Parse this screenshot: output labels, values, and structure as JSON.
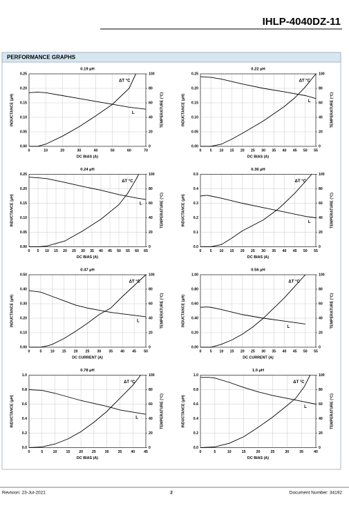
{
  "header": {
    "title": "IHLP-4040DZ-11"
  },
  "section": {
    "title": "PERFORMANCE GRAPHS"
  },
  "footer": {
    "revision": "Revision: 23-Jul-2021",
    "page": "2",
    "document": "Document Number: 34192"
  },
  "chart_data": [
    {
      "type": "line",
      "title": "0.19 µH",
      "x_label": "DC BIAS (A)",
      "y_label": "INDUCTANCE (µH)",
      "y2_label": "TEMPERATURE (°C)",
      "grid": true,
      "xlim": [
        0,
        70
      ],
      "xticks": [
        0,
        10,
        20,
        30,
        40,
        50,
        60,
        70
      ],
      "ylim": [
        0,
        0.25
      ],
      "yticks": [
        {
          "value": 0,
          "label": "0.00"
        },
        {
          "value": 0.05,
          "label": "0.05"
        },
        {
          "value": 0.1,
          "label": "0.10"
        },
        {
          "value": 0.15,
          "label": "0.15"
        },
        {
          "value": 0.2,
          "label": "0.20"
        },
        {
          "value": 0.25,
          "label": "0.25"
        }
      ],
      "y2lim": [
        0,
        100
      ],
      "y2ticks": [
        0,
        20,
        40,
        60,
        80,
        100
      ],
      "series": [
        {
          "name": "L",
          "color": "#000000",
          "x": [
            0,
            5,
            10,
            20,
            30,
            40,
            50,
            60,
            70
          ],
          "values": [
            0.185,
            0.187,
            0.185,
            0.175,
            0.165,
            0.155,
            0.145,
            0.135,
            0.128
          ]
        },
        {
          "name": "ΔT °C",
          "color": "#000000",
          "axis": "y2",
          "x": [
            0,
            5,
            10,
            20,
            30,
            40,
            50,
            60,
            64
          ],
          "values": [
            0,
            0,
            3,
            14,
            27,
            42,
            58,
            80,
            100
          ]
        }
      ]
    },
    {
      "type": "line",
      "title": "0.22 µH",
      "x_label": "DC BIAS (A)",
      "y_label": "INDUCTANCE (µH)",
      "y2_label": "TEMPERATURE (°C)",
      "grid": true,
      "xlim": [
        0,
        55
      ],
      "xticks": [
        0,
        5,
        10,
        15,
        20,
        25,
        30,
        35,
        40,
        45,
        50,
        55
      ],
      "ylim": [
        0,
        0.25
      ],
      "yticks": [
        {
          "value": 0,
          "label": "0.00"
        },
        {
          "value": 0.05,
          "label": "0.05"
        },
        {
          "value": 0.1,
          "label": "0.10"
        },
        {
          "value": 0.15,
          "label": "0.15"
        },
        {
          "value": 0.2,
          "label": "0.20"
        },
        {
          "value": 0.25,
          "label": "0.25"
        }
      ],
      "y2lim": [
        0,
        100
      ],
      "y2ticks": [
        0,
        20,
        40,
        60,
        80,
        100
      ],
      "series": [
        {
          "name": "L",
          "color": "#000000",
          "x": [
            0,
            5,
            10,
            20,
            30,
            40,
            50,
            55
          ],
          "values": [
            0.24,
            0.238,
            0.232,
            0.215,
            0.2,
            0.188,
            0.175,
            0.165
          ]
        },
        {
          "name": "ΔT °C",
          "color": "#000000",
          "axis": "y2",
          "x": [
            0,
            5,
            10,
            15,
            20,
            30,
            40,
            45,
            50,
            55
          ],
          "values": [
            0,
            0,
            3,
            10,
            18,
            35,
            55,
            67,
            82,
            100
          ]
        }
      ]
    },
    {
      "type": "line",
      "title": "0.24 µH",
      "x_label": "DC BIAS (A)",
      "y_label": "INDUCTANCE (µH)",
      "y2_label": "TEMPERATURE (°C)",
      "grid": true,
      "xlim": [
        0,
        65
      ],
      "xticks": [
        0,
        5,
        10,
        15,
        20,
        25,
        30,
        35,
        40,
        45,
        50,
        55,
        60,
        65
      ],
      "ylim": [
        0,
        0.25
      ],
      "yticks": [
        {
          "value": 0,
          "label": "0.00"
        },
        {
          "value": 0.05,
          "label": "0.05"
        },
        {
          "value": 0.1,
          "label": "0.10"
        },
        {
          "value": 0.15,
          "label": "0.15"
        },
        {
          "value": 0.2,
          "label": "0.20"
        },
        {
          "value": 0.25,
          "label": "0.25"
        }
      ],
      "y2lim": [
        0,
        100
      ],
      "y2ticks": [
        0,
        20,
        40,
        60,
        80,
        100
      ],
      "series": [
        {
          "name": "L",
          "color": "#000000",
          "x": [
            0,
            5,
            10,
            20,
            30,
            40,
            50,
            60,
            65
          ],
          "values": [
            0.24,
            0.238,
            0.235,
            0.222,
            0.208,
            0.195,
            0.18,
            0.168,
            0.163
          ]
        },
        {
          "name": "ΔT °C",
          "color": "#000000",
          "axis": "y2",
          "x": [
            0,
            5,
            10,
            20,
            30,
            40,
            50,
            55,
            60,
            61
          ],
          "values": [
            0,
            0,
            1,
            8,
            22,
            38,
            58,
            74,
            95,
            100
          ]
        }
      ]
    },
    {
      "type": "line",
      "title": "0.36 µH",
      "x_label": "DC BIAS (A)",
      "y_label": "INDUCTANCE (µH)",
      "y2_label": "TEMPERATURE (°C)",
      "grid": true,
      "xlim": [
        0,
        55
      ],
      "xticks": [
        0,
        5,
        10,
        15,
        20,
        25,
        30,
        35,
        40,
        45,
        50,
        55
      ],
      "ylim": [
        0,
        0.5
      ],
      "yticks": [
        {
          "value": 0,
          "label": "0.0"
        },
        {
          "value": 0.1,
          "label": "0.1"
        },
        {
          "value": 0.2,
          "label": "0.2"
        },
        {
          "value": 0.3,
          "label": "0.3"
        },
        {
          "value": 0.4,
          "label": "0.4"
        },
        {
          "value": 0.5,
          "label": "0.5"
        }
      ],
      "y2lim": [
        0,
        100
      ],
      "y2ticks": [
        0,
        20,
        40,
        60,
        80,
        100
      ],
      "series": [
        {
          "name": "L",
          "color": "#000000",
          "x": [
            0,
            3,
            5,
            10,
            20,
            30,
            40,
            50,
            55
          ],
          "values": [
            0.35,
            0.355,
            0.35,
            0.335,
            0.3,
            0.27,
            0.24,
            0.21,
            0.2
          ]
        },
        {
          "name": "ΔT °C",
          "color": "#000000",
          "axis": "y2",
          "x": [
            0,
            5,
            10,
            15,
            20,
            30,
            37,
            40,
            45,
            50,
            53
          ],
          "values": [
            0,
            0,
            3,
            12,
            22,
            37,
            52,
            60,
            74,
            90,
            100
          ]
        }
      ]
    },
    {
      "type": "line",
      "title": "0.47 µH",
      "x_label": "DC CURRENT (A)",
      "y_label": "INDUCTANCE (µH)",
      "y2_label": "TEMPERATURE (°C)",
      "grid": true,
      "xlim": [
        0,
        50
      ],
      "xticks": [
        0,
        5,
        10,
        15,
        20,
        25,
        30,
        35,
        40,
        45,
        50
      ],
      "ylim": [
        0,
        0.5
      ],
      "yticks": [
        {
          "value": 0,
          "label": "0.00"
        },
        {
          "value": 0.1,
          "label": "0.10"
        },
        {
          "value": 0.2,
          "label": "0.20"
        },
        {
          "value": 0.3,
          "label": "0.30"
        },
        {
          "value": 0.4,
          "label": "0.40"
        },
        {
          "value": 0.5,
          "label": "0.50"
        }
      ],
      "y2lim": [
        0,
        100
      ],
      "y2ticks": [
        0,
        20,
        40,
        60,
        80,
        100
      ],
      "series": [
        {
          "name": "L",
          "color": "#000000",
          "x": [
            0,
            5,
            10,
            15,
            20,
            25,
            30,
            35,
            40,
            45,
            50
          ],
          "values": [
            0.39,
            0.38,
            0.35,
            0.32,
            0.29,
            0.27,
            0.255,
            0.24,
            0.23,
            0.22,
            0.21
          ]
        },
        {
          "name": "ΔT °C",
          "color": "#000000",
          "axis": "y2",
          "x": [
            0,
            5,
            8,
            10,
            15,
            20,
            25,
            30,
            35,
            40,
            45,
            50
          ],
          "values": [
            0,
            0,
            2,
            4,
            12,
            22,
            33,
            45,
            54,
            70,
            85,
            100
          ]
        }
      ]
    },
    {
      "type": "line",
      "title": "0.56 µH",
      "x_label": "DC CURRENT (A)",
      "y_label": "INDUCTANCE (µH)",
      "y2_label": "TEMPERATURE (°C)",
      "grid": true,
      "xlim": [
        0,
        55
      ],
      "xticks": [
        0,
        5,
        10,
        15,
        20,
        25,
        30,
        35,
        40,
        45,
        50,
        55
      ],
      "ylim": [
        0,
        1
      ],
      "yticks": [
        {
          "value": 0,
          "label": "0.00"
        },
        {
          "value": 0.2,
          "label": "0.20"
        },
        {
          "value": 0.4,
          "label": "0.40"
        },
        {
          "value": 0.6,
          "label": "0.60"
        },
        {
          "value": 0.8,
          "label": "0.80"
        },
        {
          "value": 1,
          "label": "1.00"
        }
      ],
      "y2lim": [
        0,
        100
      ],
      "y2ticks": [
        0,
        20,
        40,
        60,
        80,
        100
      ],
      "series": [
        {
          "name": "L",
          "color": "#000000",
          "x": [
            0,
            3,
            5,
            10,
            20,
            30,
            40,
            50
          ],
          "values": [
            0.55,
            0.555,
            0.55,
            0.52,
            0.45,
            0.4,
            0.36,
            0.32
          ]
        },
        {
          "name": "ΔT °C",
          "color": "#000000",
          "axis": "y2",
          "x": [
            0,
            5,
            10,
            15,
            20,
            25,
            30,
            35,
            40,
            45,
            50
          ],
          "values": [
            0,
            0,
            4,
            10,
            18,
            28,
            40,
            54,
            68,
            84,
            100
          ]
        }
      ]
    },
    {
      "type": "line",
      "title": "0.78 µH",
      "x_label": "DC BIAS (A)",
      "y_label": "INDUCTANCE (µH)",
      "y2_label": "TEMPERATURE (°C)",
      "grid": true,
      "xlim": [
        0,
        45
      ],
      "xticks": [
        0,
        5,
        10,
        15,
        20,
        25,
        30,
        35,
        40,
        45
      ],
      "ylim": [
        0,
        1
      ],
      "yticks": [
        {
          "value": 0,
          "label": "0.0"
        },
        {
          "value": 0.2,
          "label": "0.2"
        },
        {
          "value": 0.4,
          "label": "0.4"
        },
        {
          "value": 0.6,
          "label": "0.6"
        },
        {
          "value": 0.8,
          "label": "0.8"
        },
        {
          "value": 1,
          "label": "1.0"
        }
      ],
      "y2lim": [
        0,
        100
      ],
      "y2ticks": [
        0,
        20,
        40,
        60,
        80,
        100
      ],
      "series": [
        {
          "name": "L",
          "color": "#000000",
          "x": [
            0,
            5,
            10,
            15,
            20,
            25,
            30,
            35,
            40,
            45
          ],
          "values": [
            0.8,
            0.79,
            0.75,
            0.7,
            0.65,
            0.61,
            0.57,
            0.52,
            0.49,
            0.46
          ]
        },
        {
          "name": "ΔT °C",
          "color": "#000000",
          "axis": "y2",
          "x": [
            0,
            5,
            10,
            15,
            20,
            25,
            30,
            35,
            40,
            43
          ],
          "values": [
            0,
            1,
            5,
            12,
            22,
            35,
            50,
            68,
            86,
            100
          ]
        }
      ]
    },
    {
      "type": "line",
      "title": "1.0 µH",
      "x_label": "DC BIAS (A)",
      "y_label": "INDUCTANCE (µH)",
      "y2_label": "TEMPERATURE (°C)",
      "grid": true,
      "xlim": [
        0,
        40
      ],
      "xticks": [
        0,
        5,
        10,
        15,
        20,
        25,
        30,
        35,
        40
      ],
      "ylim": [
        0,
        1
      ],
      "yticks": [
        {
          "value": 0,
          "label": "0.0"
        },
        {
          "value": 0.2,
          "label": "0.2"
        },
        {
          "value": 0.4,
          "label": "0.4"
        },
        {
          "value": 0.6,
          "label": "0.6"
        },
        {
          "value": 0.8,
          "label": "0.8"
        },
        {
          "value": 1,
          "label": "1.0"
        }
      ],
      "y2lim": [
        0,
        100
      ],
      "y2ticks": [
        0,
        20,
        40,
        60,
        80,
        100
      ],
      "series": [
        {
          "name": "L",
          "color": "#000000",
          "x": [
            0,
            3,
            5,
            10,
            15,
            20,
            25,
            30,
            35,
            40
          ],
          "values": [
            0.97,
            0.97,
            0.96,
            0.9,
            0.83,
            0.77,
            0.72,
            0.68,
            0.64,
            0.6
          ]
        },
        {
          "name": "ΔT °C",
          "color": "#000000",
          "axis": "y2",
          "x": [
            0,
            5,
            10,
            15,
            20,
            25,
            30,
            33,
            36,
            38
          ],
          "values": [
            0,
            1,
            6,
            15,
            28,
            42,
            58,
            68,
            84,
            100
          ]
        }
      ]
    }
  ]
}
